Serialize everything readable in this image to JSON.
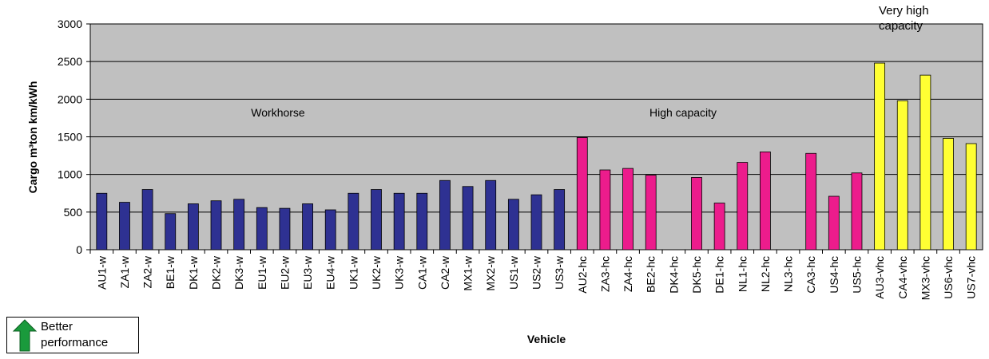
{
  "chart_data": {
    "type": "bar",
    "x_label": "Vehicle",
    "y_label": "Cargo m³ton km/kWh",
    "note": "Better performance",
    "categories": [
      "AU1-w",
      "ZA1-w",
      "ZA2-w",
      "BE1-w",
      "DK1-w",
      "DK2-w",
      "DK3-w",
      "EU1-w",
      "EU2-w",
      "EU3-w",
      "EU4-w",
      "UK1-w",
      "UK2-w",
      "UK3-w",
      "CA1-w",
      "CA2-w",
      "MX1-w",
      "MX2-w",
      "US1-w",
      "US2-w",
      "US3-w",
      "AU2-hc",
      "ZA3-hc",
      "ZA4-hc",
      "BE2-hc",
      "DK4-hc",
      "DK5-hc",
      "DE1-hc",
      "NL1-hc",
      "NL2-hc",
      "NL3-hc",
      "CA3-hc",
      "US4-hc",
      "US5-hc",
      "AU3-vhc",
      "CA4-vhc",
      "MX3-vhc",
      "US6-vhc",
      "US7-vhc"
    ],
    "series": [
      {
        "name": "Workhorse",
        "color": "#2e3192",
        "values": [
          750,
          630,
          800,
          480,
          610,
          650,
          670,
          560,
          550,
          610,
          530,
          750,
          800,
          750,
          750,
          920,
          840,
          920,
          670,
          730,
          800,
          null,
          null,
          null,
          null,
          null,
          null,
          null,
          null,
          null,
          null,
          null,
          null,
          null,
          null,
          null,
          null,
          null,
          null
        ]
      },
      {
        "name": "High capacity",
        "color": "#ec1c8c",
        "values": [
          null,
          null,
          null,
          null,
          null,
          null,
          null,
          null,
          null,
          null,
          null,
          null,
          null,
          null,
          null,
          null,
          null,
          null,
          null,
          null,
          null,
          1490,
          1060,
          1080,
          990,
          null,
          960,
          620,
          1160,
          1300,
          null,
          1280,
          710,
          1020,
          null,
          null,
          null,
          null,
          null
        ]
      },
      {
        "name": "Very high capacity",
        "color": "#ffff33",
        "values": [
          null,
          null,
          null,
          null,
          null,
          null,
          null,
          null,
          null,
          null,
          null,
          null,
          null,
          null,
          null,
          null,
          null,
          null,
          null,
          null,
          null,
          null,
          null,
          null,
          null,
          null,
          null,
          null,
          null,
          null,
          null,
          null,
          null,
          null,
          2480,
          1980,
          2320,
          1480,
          1410
        ]
      }
    ],
    "ylim": [
      0,
      3000
    ],
    "yticks": [
      0,
      500,
      1000,
      1500,
      2000,
      2500,
      3000
    ],
    "grid": true,
    "background": "#c0c0c0"
  }
}
